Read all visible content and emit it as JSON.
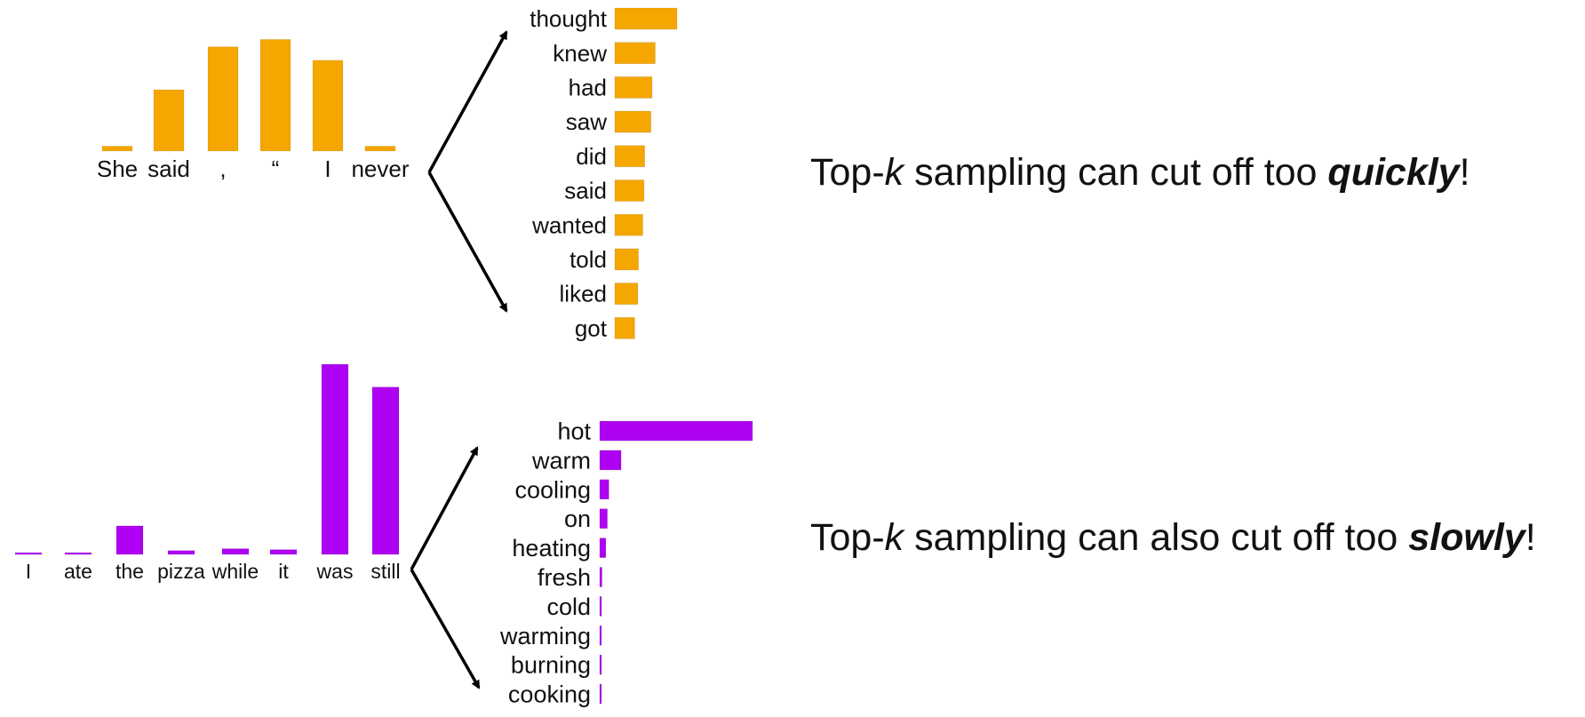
{
  "captions": {
    "top": {
      "prefix": "Top-",
      "k": "k",
      "middle": " sampling can cut off too ",
      "emphasis": "quickly",
      "suffix": "!"
    },
    "bottom": {
      "prefix": "Top-",
      "k": "k",
      "middle": " sampling can also cut off too ",
      "emphasis": "slowly",
      "suffix": "!"
    }
  },
  "colors": {
    "orange": "#F5A700",
    "purple": "#AE00F2",
    "arrow": "#000000"
  },
  "chart_data": [
    {
      "type": "bar",
      "color": "#F5A700",
      "categories": [
        "She",
        "said",
        ",",
        "“",
        "I",
        "never"
      ],
      "values": [
        0.04,
        0.5,
        0.85,
        0.91,
        0.74,
        0.04
      ]
    },
    {
      "type": "bar",
      "orientation": "horizontal",
      "color": "#F5A700",
      "categories": [
        "thought",
        "knew",
        "had",
        "saw",
        "did",
        "said",
        "wanted",
        "told",
        "liked",
        "got"
      ],
      "values": [
        1.0,
        0.65,
        0.6,
        0.58,
        0.48,
        0.47,
        0.45,
        0.38,
        0.37,
        0.32
      ]
    },
    {
      "type": "bar",
      "color": "#AE00F2",
      "categories": [
        "I",
        "ate",
        "the",
        "pizza",
        "while",
        "it",
        "was",
        "still"
      ],
      "values": [
        0.005,
        0.005,
        0.15,
        0.02,
        0.03,
        0.025,
        1.0,
        0.88
      ]
    },
    {
      "type": "bar",
      "orientation": "horizontal",
      "color": "#AE00F2",
      "categories": [
        "hot",
        "warm",
        "cooling",
        "on",
        "heating",
        "fresh",
        "cold",
        "warming",
        "burning",
        "cooking"
      ],
      "values": [
        1.0,
        0.14,
        0.06,
        0.05,
        0.04,
        0.015,
        0.012,
        0.01,
        0.01,
        0.008
      ]
    }
  ]
}
